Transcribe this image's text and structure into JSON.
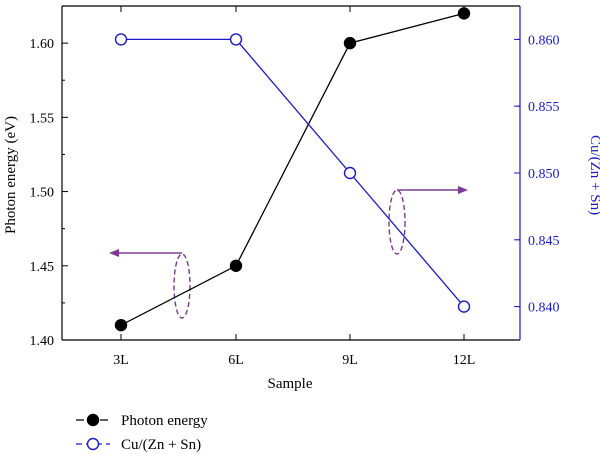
{
  "chart_data": {
    "type": "line",
    "categories": [
      "3L",
      "6L",
      "9L",
      "12L"
    ],
    "xlabel": "Sample",
    "ylabel_left": "Photon energy (eV)",
    "ylabel_right": "Cu/(Zn + Sn)",
    "ylim_left": [
      1.4,
      1.625
    ],
    "ylim_right": [
      0.8375,
      0.8625
    ],
    "yticks_left": [
      "1.40",
      "1.45",
      "1.50",
      "1.55",
      "1.60"
    ],
    "yticks_right": [
      "0.840",
      "0.845",
      "0.850",
      "0.855",
      "0.860"
    ],
    "grid": false,
    "legend_position": "bottom-left",
    "series": [
      {
        "name": "Photon energy",
        "axis": "left",
        "marker": "filled-circle",
        "color": "#000000",
        "values": [
          1.41,
          1.45,
          1.6,
          1.62
        ]
      },
      {
        "name": "Cu/(Zn + Sn)",
        "axis": "right",
        "marker": "open-circle",
        "color": "#1a1acc",
        "values": [
          0.86,
          0.86,
          0.85,
          0.84
        ]
      }
    ],
    "annotations": [
      {
        "type": "ellipse-with-arrow",
        "target_series": "Photon energy",
        "arrow_direction": "left",
        "color": "#7b3a96"
      },
      {
        "type": "ellipse-with-arrow",
        "target_series": "Cu/(Zn + Sn)",
        "arrow_direction": "right",
        "color": "#7b3a96"
      }
    ],
    "axis_colors": {
      "left": "#000000",
      "right": "#1a1acc"
    }
  }
}
